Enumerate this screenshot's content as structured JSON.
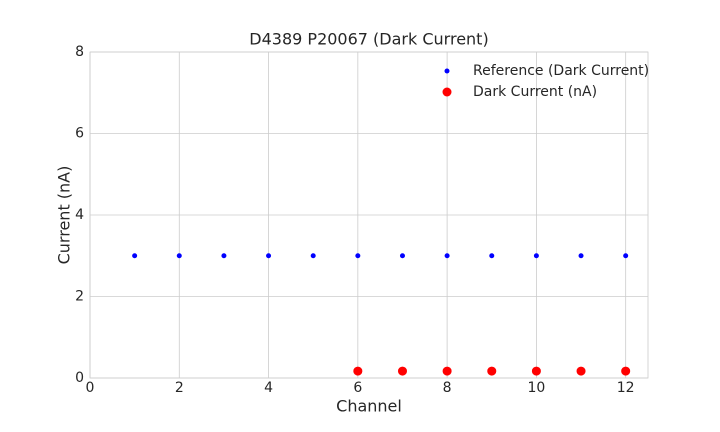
{
  "chart_data": {
    "type": "scatter",
    "title": "D4389 P20067 (Dark Current)",
    "x_label": "Channel",
    "y_label": "Current (nA)",
    "series": [
      {
        "name": "Reference (Dark Current)",
        "color": "#0000ff",
        "x": [
          1,
          2,
          3,
          4,
          5,
          6,
          7,
          8,
          9,
          10,
          11,
          12
        ],
        "values": [
          3,
          3,
          3,
          3,
          3,
          3,
          3,
          3,
          3,
          3,
          3,
          3
        ]
      },
      {
        "name": "Dark Current (nA)",
        "color": "#ff0000",
        "x": [
          6,
          7,
          8,
          9,
          10,
          11,
          12
        ],
        "values": [
          0.17,
          0.17,
          0.17,
          0.17,
          0.17,
          0.17,
          0.17
        ]
      }
    ],
    "xlim": [
      0,
      12.5
    ],
    "xticks": [
      0,
      2,
      4,
      6,
      8,
      10,
      12
    ],
    "ylim": [
      0,
      8
    ],
    "yticks": [
      0,
      2,
      4,
      6,
      8
    ],
    "grid": true,
    "legend": "upper right"
  }
}
